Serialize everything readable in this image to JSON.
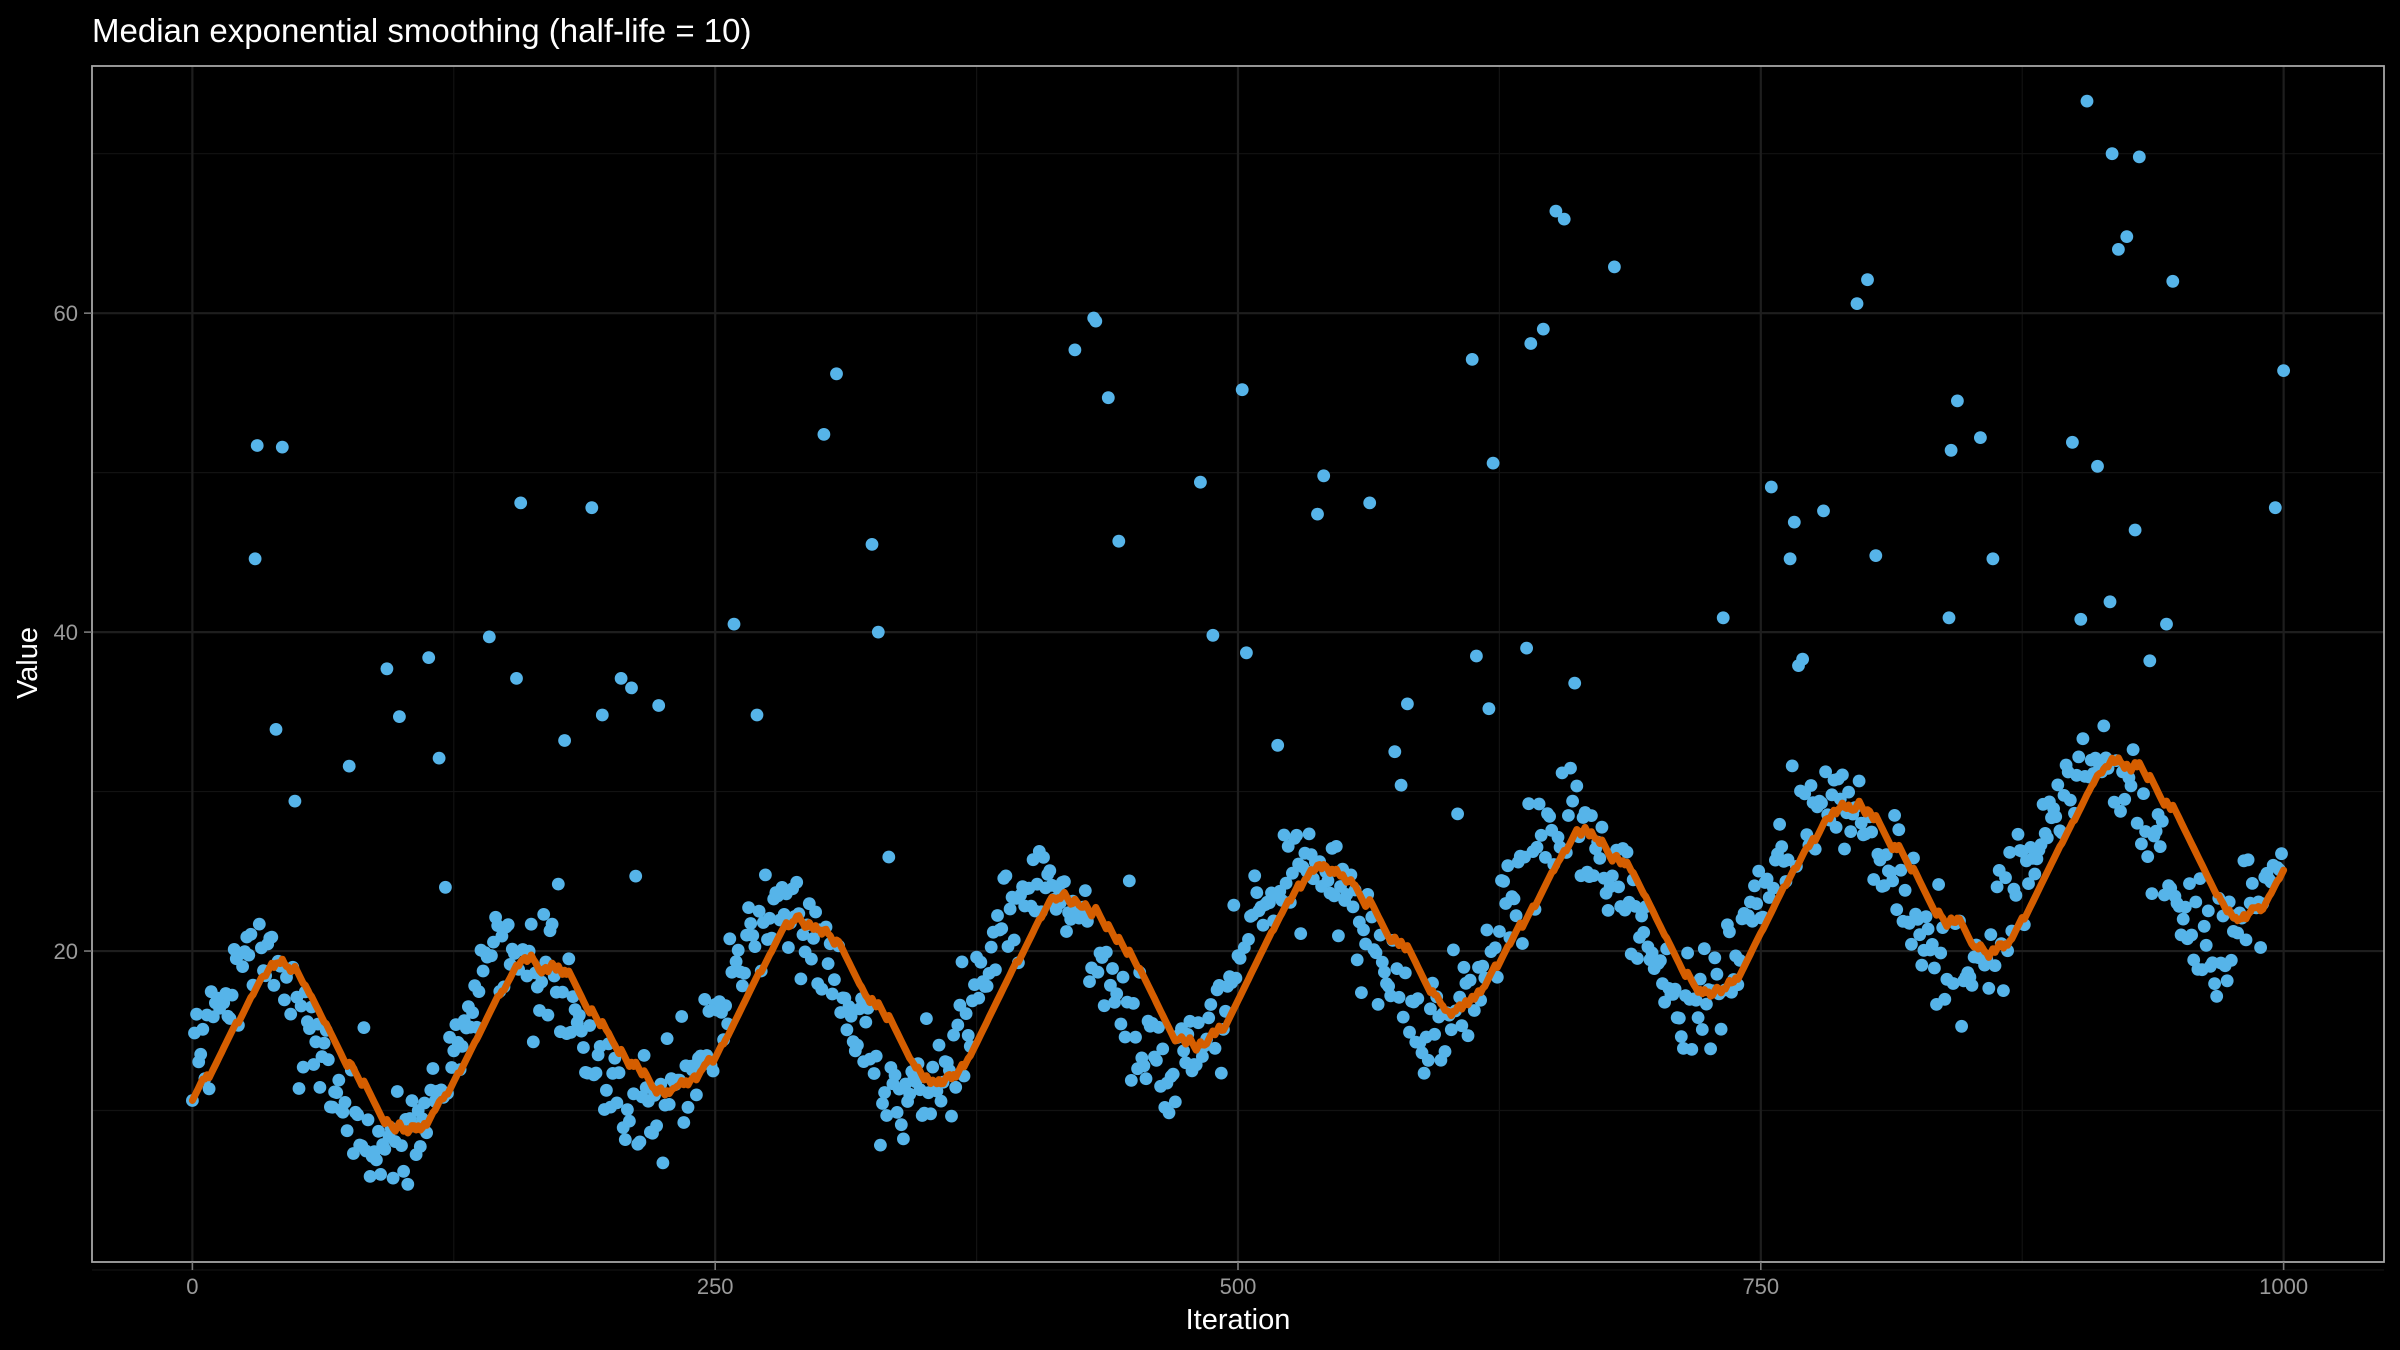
{
  "chart_data": {
    "type": "scatter",
    "title": "Median exponential smoothing (half-life = 10)",
    "xlabel": "Iteration",
    "ylabel": "Value",
    "xlim": [
      -48,
      1048
    ],
    "ylim": [
      0.5,
      75.5
    ],
    "xticks": [
      0,
      250,
      500,
      750,
      1000
    ],
    "yticks": [
      20,
      40,
      60
    ],
    "grid": true,
    "theme": "dark",
    "colors": {
      "background": "#000000",
      "points": "#56b4e9",
      "smooth": "#d55e00"
    },
    "series": [
      {
        "type": "scatter",
        "n_points": 1001,
        "x_range": [
          0,
          1000
        ],
        "trend": {
          "start": 12,
          "end": 27
        },
        "seasonal": {
          "amplitude": 6,
          "period": 125,
          "phase_iteration": 0
        },
        "noise_sd": 1.6,
        "outliers": [
          [
            30,
            44.6
          ],
          [
            31,
            51.7
          ],
          [
            33,
            20.2
          ],
          [
            40,
            33.9
          ],
          [
            43,
            51.6
          ],
          [
            49,
            29.4
          ],
          [
            75,
            31.6
          ],
          [
            82,
            15.2
          ],
          [
            93,
            37.7
          ],
          [
            99,
            34.7
          ],
          [
            113,
            38.4
          ],
          [
            118,
            32.1
          ],
          [
            121,
            24.0
          ],
          [
            142,
            39.7
          ],
          [
            155,
            37.1
          ],
          [
            157,
            48.1
          ],
          [
            175,
            24.2
          ],
          [
            178,
            33.2
          ],
          [
            191,
            47.8
          ],
          [
            196,
            34.8
          ],
          [
            205,
            37.1
          ],
          [
            210,
            36.5
          ],
          [
            212,
            24.7
          ],
          [
            223,
            35.4
          ],
          [
            259,
            40.5
          ],
          [
            270,
            34.8
          ],
          [
            302,
            52.4
          ],
          [
            308,
            56.2
          ],
          [
            325,
            45.5
          ],
          [
            328,
            40.0
          ],
          [
            333,
            25.9
          ],
          [
            422,
            57.7
          ],
          [
            431,
            59.7
          ],
          [
            432,
            59.5
          ],
          [
            438,
            54.7
          ],
          [
            443,
            45.7
          ],
          [
            448,
            24.4
          ],
          [
            482,
            49.4
          ],
          [
            488,
            39.8
          ],
          [
            502,
            55.2
          ],
          [
            504,
            38.7
          ],
          [
            519,
            32.9
          ],
          [
            538,
            47.4
          ],
          [
            541,
            49.8
          ],
          [
            563,
            48.1
          ],
          [
            575,
            32.5
          ],
          [
            578,
            30.4
          ],
          [
            581,
            35.5
          ],
          [
            605,
            28.6
          ],
          [
            612,
            57.1
          ],
          [
            614,
            38.5
          ],
          [
            620,
            35.2
          ],
          [
            622,
            50.6
          ],
          [
            638,
            39.0
          ],
          [
            640,
            58.1
          ],
          [
            646,
            59.0
          ],
          [
            652,
            66.4
          ],
          [
            656,
            65.9
          ],
          [
            661,
            36.8
          ],
          [
            680,
            62.9
          ],
          [
            732,
            40.9
          ],
          [
            755,
            49.1
          ],
          [
            764,
            44.6
          ],
          [
            766,
            46.9
          ],
          [
            768,
            37.9
          ],
          [
            770,
            38.3
          ],
          [
            780,
            47.6
          ],
          [
            790,
            26.4
          ],
          [
            796,
            60.6
          ],
          [
            801,
            62.1
          ],
          [
            805,
            44.8
          ],
          [
            840,
            40.9
          ],
          [
            841,
            51.4
          ],
          [
            844,
            54.5
          ],
          [
            855,
            52.2
          ],
          [
            861,
            44.6
          ],
          [
            899,
            51.9
          ],
          [
            903,
            40.8
          ],
          [
            906,
            73.3
          ],
          [
            911,
            50.4
          ],
          [
            917,
            41.9
          ],
          [
            918,
            70.0
          ],
          [
            921,
            64.0
          ],
          [
            925,
            64.8
          ],
          [
            929,
            46.4
          ],
          [
            931,
            69.8
          ],
          [
            936,
            38.2
          ],
          [
            944,
            40.5
          ],
          [
            947,
            62.0
          ],
          [
            996,
            47.8
          ],
          [
            1000,
            56.4
          ]
        ]
      },
      {
        "type": "line",
        "smoothing": "median-exponential",
        "half_life": 10,
        "y_range_approx": [
          7.6,
          34.2
        ]
      }
    ]
  }
}
